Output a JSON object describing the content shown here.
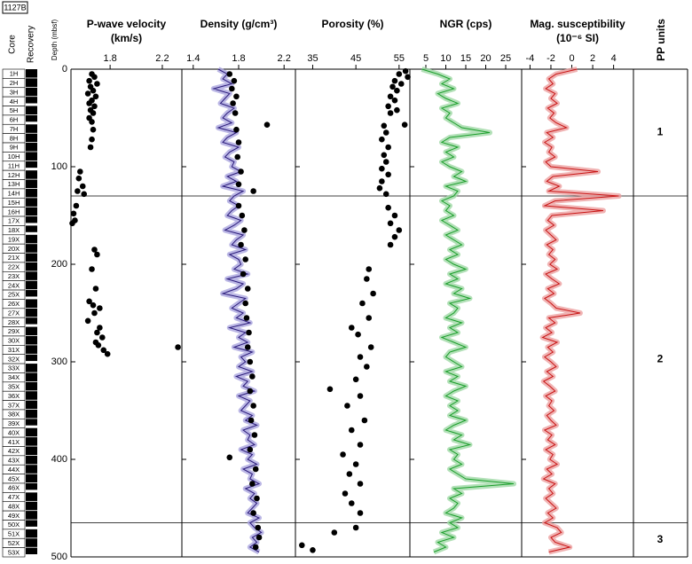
{
  "core_column": {
    "hole": "1127B",
    "core_label": "Core",
    "recovery_label": "Recovery",
    "cores": [
      "1H",
      "2H",
      "3H",
      "4H",
      "5H",
      "6H",
      "7H",
      "8H",
      "9H",
      "10H",
      "11H",
      "12H",
      "13H",
      "14H",
      "15H",
      "16H",
      "17X",
      "18X",
      "19X",
      "20X",
      "21X",
      "22X",
      "23X",
      "24X",
      "25X",
      "26X",
      "27X",
      "28X",
      "29X",
      "30X",
      "31X",
      "32X",
      "33X",
      "34X",
      "35X",
      "36X",
      "37X",
      "38X",
      "39X",
      "40X",
      "41X",
      "42X",
      "43X",
      "44X",
      "45X",
      "46X",
      "47X",
      "48X",
      "49X",
      "50X",
      "51X",
      "52X",
      "53X"
    ]
  },
  "depth_axis": {
    "label": "Depth (mbsf)",
    "ylim": [
      0,
      500
    ],
    "yticks": [
      0,
      100,
      200,
      300,
      400,
      500
    ]
  },
  "pp_units": {
    "title": "PP units",
    "labels": [
      "1",
      "2",
      "3"
    ],
    "boundaries": [
      130,
      465
    ]
  },
  "chart_data": [
    {
      "type": "scatter",
      "title": [
        "P-wave velocity",
        "(km/s)"
      ],
      "xlim": [
        1.5,
        2.35
      ],
      "xticks": [
        1.8,
        2.2
      ],
      "series": [
        {
          "color": "#000000",
          "depth": [
            5,
            8,
            12,
            15,
            18,
            22,
            25,
            28,
            32,
            35,
            38,
            42,
            45,
            50,
            54,
            62,
            72,
            80,
            105,
            112,
            120,
            125,
            128,
            140,
            148,
            155,
            158,
            185,
            190,
            205,
            225,
            238,
            242,
            245,
            250,
            258,
            265,
            270,
            275,
            280,
            283,
            285,
            288,
            292
          ],
          "values": [
            1.66,
            1.68,
            1.64,
            1.7,
            1.65,
            1.67,
            1.63,
            1.69,
            1.66,
            1.64,
            1.68,
            1.65,
            1.67,
            1.64,
            1.66,
            1.67,
            1.66,
            1.65,
            1.57,
            1.56,
            1.59,
            1.55,
            1.6,
            1.54,
            1.52,
            1.53,
            1.51,
            1.68,
            1.7,
            1.66,
            1.69,
            1.64,
            1.67,
            1.72,
            1.68,
            1.63,
            1.72,
            1.7,
            1.74,
            1.69,
            1.71,
            2.32,
            1.75,
            1.78
          ]
        }
      ]
    },
    {
      "type": "line",
      "title": [
        "Density (g/cm³)"
      ],
      "xlim": [
        1.3,
        2.3
      ],
      "xticks": [
        1.4,
        1.8,
        2.2
      ],
      "series": [
        {
          "type": "line",
          "color": "#2a1a7a",
          "halo": "#aaa5df",
          "depth": [
            0,
            5,
            10,
            15,
            20,
            25,
            30,
            35,
            40,
            45,
            50,
            55,
            60,
            65,
            70,
            75,
            80,
            85,
            90,
            95,
            100,
            105,
            110,
            115,
            120,
            125,
            130,
            135,
            140,
            145,
            150,
            155,
            160,
            165,
            170,
            175,
            180,
            185,
            190,
            195,
            200,
            205,
            210,
            215,
            220,
            225,
            230,
            235,
            240,
            245,
            250,
            255,
            260,
            265,
            270,
            275,
            280,
            285,
            290,
            295,
            300,
            305,
            310,
            315,
            320,
            325,
            330,
            335,
            340,
            345,
            350,
            355,
            360,
            365,
            370,
            375,
            380,
            385,
            390,
            395,
            400,
            405,
            410,
            415,
            420,
            425,
            430,
            435,
            440,
            445,
            450,
            455,
            460,
            465,
            470,
            475,
            480,
            485,
            490,
            495
          ],
          "values": [
            1.62,
            1.7,
            1.66,
            1.74,
            1.58,
            1.72,
            1.68,
            1.64,
            1.76,
            1.7,
            1.66,
            1.74,
            1.62,
            1.78,
            1.7,
            1.66,
            1.8,
            1.72,
            1.68,
            1.76,
            1.74,
            1.82,
            1.7,
            1.78,
            1.66,
            1.84,
            1.76,
            1.72,
            1.8,
            1.74,
            1.7,
            1.82,
            1.76,
            1.68,
            1.84,
            1.78,
            1.74,
            1.86,
            1.72,
            1.8,
            1.82,
            1.76,
            1.88,
            1.7,
            1.84,
            1.78,
            1.66,
            1.86,
            1.8,
            1.74,
            1.84,
            1.78,
            1.9,
            1.72,
            1.86,
            1.8,
            1.88,
            1.76,
            1.92,
            1.82,
            1.86,
            1.8,
            1.92,
            1.78,
            1.88,
            1.84,
            1.94,
            1.8,
            1.9,
            1.86,
            1.82,
            1.92,
            1.86,
            1.96,
            1.84,
            1.9,
            1.88,
            1.94,
            1.82,
            1.92,
            1.88,
            1.96,
            1.84,
            1.92,
            1.9,
            1.98,
            1.86,
            1.94,
            1.9,
            1.96,
            1.92,
            1.88,
            1.98,
            1.9,
            1.94,
            2.0,
            1.92,
            1.96,
            1.9,
            1.98
          ]
        },
        {
          "type": "scatter",
          "color": "#000000",
          "depth": [
            5,
            12,
            20,
            28,
            35,
            45,
            57,
            62,
            75,
            90,
            105,
            118,
            125,
            140,
            150,
            165,
            180,
            195,
            210,
            225,
            240,
            255,
            270,
            285,
            300,
            315,
            330,
            345,
            360,
            375,
            390,
            398,
            410,
            425,
            440,
            455,
            470,
            480,
            490
          ],
          "values": [
            1.72,
            1.76,
            1.74,
            1.78,
            1.75,
            1.77,
            2.05,
            1.78,
            1.8,
            1.79,
            1.82,
            1.8,
            1.93,
            1.8,
            1.83,
            1.85,
            1.82,
            1.86,
            1.84,
            1.88,
            1.86,
            1.87,
            1.89,
            1.88,
            1.9,
            1.92,
            1.9,
            1.93,
            1.91,
            1.94,
            1.9,
            1.72,
            1.95,
            1.92,
            1.96,
            1.93,
            1.97,
            1.98,
            1.95
          ]
        }
      ]
    },
    {
      "type": "scatter",
      "title": [
        "Porosity (%)"
      ],
      "xlim": [
        31,
        57.5
      ],
      "xticks": [
        35,
        45,
        55
      ],
      "series": [
        {
          "color": "#000000",
          "depth": [
            2,
            5,
            8,
            12,
            15,
            18,
            22,
            28,
            32,
            38,
            42,
            45,
            57,
            58,
            65,
            72,
            80,
            88,
            95,
            102,
            108,
            115,
            122,
            128,
            142,
            150,
            158,
            165,
            172,
            180,
            205,
            215,
            230,
            240,
            255,
            265,
            272,
            285,
            295,
            305,
            318,
            328,
            335,
            345,
            360,
            370,
            385,
            395,
            405,
            415,
            425,
            435,
            445,
            455,
            470,
            475,
            488,
            493
          ],
          "values": [
            56.5,
            55,
            57,
            54,
            55.5,
            53.5,
            54.5,
            53,
            54,
            52.5,
            54.5,
            53,
            56.3,
            51.5,
            52,
            51,
            52.5,
            51.5,
            52,
            51,
            52.5,
            51,
            50.5,
            52,
            52.5,
            54,
            53,
            55,
            54,
            53,
            48,
            47.5,
            49,
            46.5,
            48,
            44,
            45.5,
            48.5,
            46,
            47.5,
            45,
            39,
            46,
            43,
            47,
            44,
            46,
            42,
            45,
            43.5,
            46,
            42.5,
            44,
            46,
            45,
            40,
            32.5,
            35
          ]
        }
      ]
    },
    {
      "type": "line",
      "title": [
        "NGR (cps)"
      ],
      "xlim": [
        1,
        29
      ],
      "xticks": [
        5,
        10,
        15,
        20,
        25
      ],
      "series": [
        {
          "color": "#1a9e2a",
          "halo": "#9fd8a5",
          "depth": [
            0,
            5,
            10,
            15,
            20,
            25,
            30,
            35,
            40,
            45,
            50,
            55,
            60,
            65,
            70,
            75,
            80,
            85,
            90,
            95,
            100,
            105,
            110,
            115,
            120,
            125,
            130,
            135,
            140,
            145,
            150,
            155,
            160,
            165,
            170,
            175,
            180,
            185,
            190,
            195,
            200,
            205,
            210,
            215,
            220,
            225,
            230,
            235,
            240,
            245,
            250,
            255,
            260,
            265,
            270,
            275,
            280,
            285,
            290,
            295,
            300,
            305,
            310,
            315,
            320,
            325,
            330,
            335,
            340,
            345,
            350,
            355,
            360,
            365,
            370,
            375,
            380,
            385,
            390,
            395,
            400,
            405,
            410,
            415,
            420,
            425,
            430,
            435,
            440,
            445,
            450,
            455,
            460,
            465,
            470,
            475,
            480,
            485,
            490,
            495
          ],
          "values": [
            4,
            8,
            11,
            9,
            12,
            8,
            10,
            13,
            9,
            11,
            10,
            12,
            14,
            21,
            11,
            9,
            13,
            10,
            12,
            9,
            11,
            14,
            12,
            15,
            10,
            13,
            12,
            9,
            11,
            10,
            12,
            9,
            11,
            13,
            10,
            12,
            14,
            11,
            13,
            10,
            12,
            15,
            11,
            13,
            10,
            14,
            12,
            16,
            11,
            13,
            12,
            10,
            14,
            11,
            13,
            9,
            12,
            15,
            11,
            10,
            12,
            14,
            10,
            13,
            11,
            15,
            12,
            10,
            13,
            11,
            13,
            11,
            15,
            12,
            10,
            14,
            12,
            16,
            11,
            13,
            12,
            14,
            11,
            13,
            15,
            27,
            12,
            14,
            11,
            13,
            12,
            10,
            14,
            11,
            13,
            9,
            12,
            8,
            10,
            7
          ]
        }
      ]
    },
    {
      "type": "line",
      "title": [
        "Mag. susceptibility",
        "(10⁻⁶ SI)"
      ],
      "xlim": [
        -4.8,
        5.9
      ],
      "xticks": [
        -4,
        -2,
        0,
        2,
        4
      ],
      "series": [
        {
          "color": "#c81414",
          "halo": "#eca0a0",
          "depth": [
            0,
            5,
            10,
            15,
            20,
            25,
            30,
            35,
            40,
            45,
            50,
            55,
            60,
            65,
            70,
            75,
            80,
            85,
            90,
            95,
            100,
            105,
            110,
            115,
            120,
            125,
            130,
            135,
            140,
            145,
            150,
            155,
            160,
            165,
            170,
            175,
            180,
            185,
            190,
            195,
            200,
            205,
            210,
            215,
            220,
            225,
            230,
            235,
            240,
            245,
            250,
            255,
            260,
            265,
            270,
            275,
            280,
            285,
            290,
            295,
            300,
            305,
            310,
            315,
            320,
            325,
            330,
            335,
            340,
            345,
            350,
            355,
            360,
            365,
            370,
            375,
            380,
            385,
            390,
            395,
            400,
            405,
            410,
            415,
            420,
            425,
            430,
            435,
            440,
            445,
            450,
            455,
            460,
            465,
            470,
            475,
            480,
            485,
            490,
            495
          ],
          "values": [
            0.5,
            -1.5,
            -2.2,
            -1.8,
            -2.5,
            -1.6,
            -2.0,
            -1.4,
            -2.3,
            -1.7,
            -2.1,
            -1.5,
            -0.5,
            -2.4,
            -1.8,
            -2.6,
            -1.9,
            -2.2,
            -1.6,
            -2.5,
            -2.0,
            2.5,
            -1.8,
            -2.4,
            -1.2,
            -2.2,
            4.5,
            -1.6,
            -2.6,
            3.0,
            -1.9,
            -2.3,
            -1.7,
            -2.5,
            -2.0,
            -1.5,
            -2.4,
            -1.8,
            -2.2,
            -1.6,
            -2.1,
            -1.4,
            -2.5,
            -1.9,
            -1.2,
            -2.3,
            -1.7,
            -2.6,
            -2.0,
            -1.5,
            0.8,
            -2.2,
            -1.6,
            -2.5,
            -1.9,
            -2.8,
            -1.4,
            -2.3,
            -1.8,
            -2.6,
            -2.0,
            -1.5,
            -2.4,
            -1.8,
            -2.7,
            -2.1,
            -1.6,
            -2.5,
            -1.9,
            -2.2,
            -1.7,
            -2.4,
            -2.0,
            -1.5,
            -2.6,
            -1.9,
            -2.3,
            -1.6,
            -2.5,
            -1.8,
            -2.1,
            -1.4,
            -2.4,
            -1.9,
            -2.7,
            -1.6,
            -2.2,
            -1.8,
            -2.5,
            -2.0,
            -1.5,
            -2.3,
            -1.8,
            -2.6,
            -1.4,
            -1.0,
            -2.0,
            -1.6,
            -0.2,
            -2.2
          ]
        }
      ]
    }
  ]
}
